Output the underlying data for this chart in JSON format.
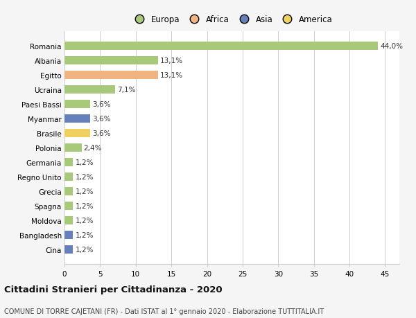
{
  "countries": [
    "Romania",
    "Albania",
    "Egitto",
    "Ucraina",
    "Paesi Bassi",
    "Myanmar",
    "Brasile",
    "Polonia",
    "Germania",
    "Regno Unito",
    "Grecia",
    "Spagna",
    "Moldova",
    "Bangladesh",
    "Cina"
  ],
  "values": [
    44.0,
    13.1,
    13.1,
    7.1,
    3.6,
    3.6,
    3.6,
    2.4,
    1.2,
    1.2,
    1.2,
    1.2,
    1.2,
    1.2,
    1.2
  ],
  "labels": [
    "44,0%",
    "13,1%",
    "13,1%",
    "7,1%",
    "3,6%",
    "3,6%",
    "3,6%",
    "2,4%",
    "1,2%",
    "1,2%",
    "1,2%",
    "1,2%",
    "1,2%",
    "1,2%",
    "1,2%"
  ],
  "continents": [
    "Europa",
    "Europa",
    "Africa",
    "Europa",
    "Europa",
    "Asia",
    "America",
    "Europa",
    "Europa",
    "Europa",
    "Europa",
    "Europa",
    "Europa",
    "Asia",
    "Asia"
  ],
  "colors": {
    "Europa": "#a8c87a",
    "Africa": "#f0b480",
    "Asia": "#6680bb",
    "America": "#f0d060"
  },
  "legend_order": [
    "Europa",
    "Africa",
    "Asia",
    "America"
  ],
  "xlim": [
    0,
    47
  ],
  "xticks": [
    0,
    5,
    10,
    15,
    20,
    25,
    30,
    35,
    40,
    45
  ],
  "title": "Cittadini Stranieri per Cittadinanza - 2020",
  "subtitle": "COMUNE DI TORRE CAJETANI (FR) - Dati ISTAT al 1° gennaio 2020 - Elaborazione TUTTITALIA.IT",
  "background_color": "#f5f5f5",
  "plot_background_color": "#ffffff",
  "grid_color": "#cccccc"
}
